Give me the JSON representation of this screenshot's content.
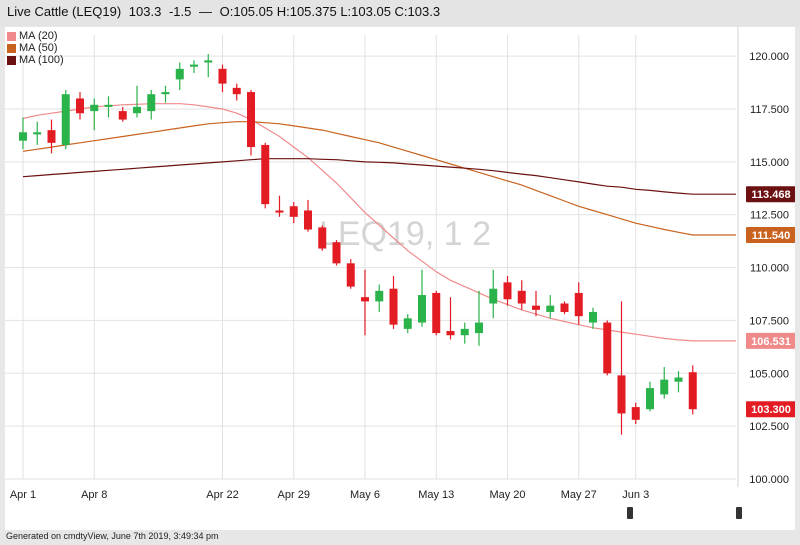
{
  "header": {
    "symbol": "Live Cattle (LEQ19)",
    "last": "103.3",
    "change": "-1.5",
    "separator": "—",
    "ohlc": "O:105.05 H:105.375 L:103.05 C:103.3"
  },
  "footer": {
    "text": "Generated on cmdtyView, June 7th 2019, 3:49:34 pm"
  },
  "colors": {
    "up": "#2bb34b",
    "down": "#e31b23",
    "ma20": "#f08a8a",
    "ma50": "#c8621e",
    "ma100": "#6b1111",
    "grid": "#e2e2e2",
    "watermark": "#d4d4d4"
  },
  "chart_data": {
    "type": "candlestick",
    "title": "Live Cattle (LEQ19)",
    "watermark": "LEQ19, 1 2",
    "legend": [
      {
        "name": "MA (20)",
        "color": "#f08a8a"
      },
      {
        "name": "MA (50)",
        "color": "#c8621e"
      },
      {
        "name": "MA (100)",
        "color": "#6b1111"
      }
    ],
    "legend_position": "top-left",
    "ylim": [
      100,
      121
    ],
    "y_ticks": [
      "100.000",
      "102.500",
      "105.000",
      "107.500",
      "110.000",
      "112.500",
      "115.000",
      "117.500",
      "120.000"
    ],
    "y_tick_values": [
      100,
      102.5,
      105,
      107.5,
      110,
      112.5,
      115,
      117.5,
      120
    ],
    "x_ticks": [
      {
        "label": "Apr 1",
        "index": 0
      },
      {
        "label": "Apr 8",
        "index": 5
      },
      {
        "label": "Apr 22",
        "index": 14
      },
      {
        "label": "Apr 29",
        "index": 19
      },
      {
        "label": "May 6",
        "index": 24
      },
      {
        "label": "May 13",
        "index": 29
      },
      {
        "label": "May 20",
        "index": 34
      },
      {
        "label": "May 27",
        "index": 39
      },
      {
        "label": "Jun 3",
        "index": 43
      }
    ],
    "x_count": 48,
    "candles": [
      {
        "o": 116.0,
        "h": 117.1,
        "l": 115.6,
        "c": 116.4
      },
      {
        "o": 116.3,
        "h": 116.9,
        "l": 115.8,
        "c": 116.4
      },
      {
        "o": 116.5,
        "h": 117.0,
        "l": 115.4,
        "c": 115.9
      },
      {
        "o": 115.8,
        "h": 118.4,
        "l": 115.6,
        "c": 118.2
      },
      {
        "o": 118.0,
        "h": 118.3,
        "l": 117.0,
        "c": 117.3
      },
      {
        "o": 117.4,
        "h": 118.0,
        "l": 116.5,
        "c": 117.7
      },
      {
        "o": 117.6,
        "h": 118.1,
        "l": 117.1,
        "c": 117.7
      },
      {
        "o": 117.4,
        "h": 117.6,
        "l": 116.9,
        "c": 117.0
      },
      {
        "o": 117.3,
        "h": 118.6,
        "l": 117.1,
        "c": 117.6
      },
      {
        "o": 117.4,
        "h": 118.4,
        "l": 117.0,
        "c": 118.2
      },
      {
        "o": 118.2,
        "h": 118.6,
        "l": 117.8,
        "c": 118.3
      },
      {
        "o": 118.9,
        "h": 119.7,
        "l": 118.4,
        "c": 119.4
      },
      {
        "o": 119.5,
        "h": 119.8,
        "l": 119.2,
        "c": 119.6
      },
      {
        "o": 119.7,
        "h": 120.1,
        "l": 119.0,
        "c": 119.8
      },
      {
        "o": 119.4,
        "h": 119.6,
        "l": 118.3,
        "c": 118.7
      },
      {
        "o": 118.5,
        "h": 118.7,
        "l": 117.9,
        "c": 118.2
      },
      {
        "o": 118.3,
        "h": 118.4,
        "l": 115.3,
        "c": 115.7
      },
      {
        "o": 115.8,
        "h": 115.9,
        "l": 112.8,
        "c": 113.0
      },
      {
        "o": 112.7,
        "h": 113.4,
        "l": 112.4,
        "c": 112.6
      },
      {
        "o": 112.9,
        "h": 113.1,
        "l": 112.1,
        "c": 112.4
      },
      {
        "o": 112.7,
        "h": 113.2,
        "l": 111.7,
        "c": 111.8
      },
      {
        "o": 111.9,
        "h": 112.0,
        "l": 110.8,
        "c": 110.9
      },
      {
        "o": 111.2,
        "h": 111.3,
        "l": 110.1,
        "c": 110.2
      },
      {
        "o": 110.2,
        "h": 110.4,
        "l": 109.0,
        "c": 109.1
      },
      {
        "o": 108.6,
        "h": 109.9,
        "l": 106.8,
        "c": 108.4
      },
      {
        "o": 108.4,
        "h": 109.2,
        "l": 107.9,
        "c": 108.9
      },
      {
        "o": 109.0,
        "h": 109.6,
        "l": 107.1,
        "c": 107.3
      },
      {
        "o": 107.1,
        "h": 107.8,
        "l": 106.9,
        "c": 107.6
      },
      {
        "o": 107.4,
        "h": 109.9,
        "l": 107.2,
        "c": 108.7
      },
      {
        "o": 108.8,
        "h": 108.9,
        "l": 106.8,
        "c": 106.9
      },
      {
        "o": 107.0,
        "h": 108.6,
        "l": 106.6,
        "c": 106.8
      },
      {
        "o": 106.8,
        "h": 107.4,
        "l": 106.4,
        "c": 107.1
      },
      {
        "o": 106.9,
        "h": 108.9,
        "l": 106.3,
        "c": 107.4
      },
      {
        "o": 108.3,
        "h": 109.9,
        "l": 107.6,
        "c": 109.0
      },
      {
        "o": 109.3,
        "h": 109.6,
        "l": 108.2,
        "c": 108.5
      },
      {
        "o": 108.9,
        "h": 109.4,
        "l": 108.0,
        "c": 108.3
      },
      {
        "o": 108.2,
        "h": 108.9,
        "l": 107.7,
        "c": 108.0
      },
      {
        "o": 107.9,
        "h": 108.7,
        "l": 107.6,
        "c": 108.2
      },
      {
        "o": 108.3,
        "h": 108.4,
        "l": 107.8,
        "c": 107.9
      },
      {
        "o": 108.8,
        "h": 109.3,
        "l": 107.3,
        "c": 107.7
      },
      {
        "o": 107.4,
        "h": 108.1,
        "l": 107.1,
        "c": 107.9
      },
      {
        "o": 107.4,
        "h": 107.5,
        "l": 104.9,
        "c": 105.0
      },
      {
        "o": 104.9,
        "h": 108.4,
        "l": 102.1,
        "c": 103.1
      },
      {
        "o": 103.4,
        "h": 103.6,
        "l": 102.6,
        "c": 102.8
      },
      {
        "o": 103.3,
        "h": 104.6,
        "l": 103.2,
        "c": 104.3
      },
      {
        "o": 104.0,
        "h": 105.3,
        "l": 103.8,
        "c": 104.7
      },
      {
        "o": 104.6,
        "h": 105.1,
        "l": 104.1,
        "c": 104.8
      },
      {
        "o": 105.05,
        "h": 105.375,
        "l": 103.05,
        "c": 103.3
      }
    ],
    "series": [
      {
        "name": "MA (20)",
        "values": [
          117.05,
          117.2,
          117.3,
          117.4,
          117.5,
          117.6,
          117.65,
          117.7,
          117.72,
          117.75,
          117.75,
          117.75,
          117.7,
          117.6,
          117.5,
          117.3,
          117.0,
          116.6,
          116.2,
          115.7,
          115.2,
          114.6,
          114.0,
          113.3,
          112.6,
          112.0,
          111.4,
          110.8,
          110.3,
          109.8,
          109.4,
          109.1,
          108.8,
          108.5,
          108.25,
          108.0,
          107.8,
          107.6,
          107.45,
          107.3,
          107.15,
          107.05,
          106.95,
          106.85,
          106.75,
          106.65,
          106.58,
          106.53
        ]
      },
      {
        "name": "MA (50)",
        "values": [
          115.5,
          115.6,
          115.7,
          115.8,
          115.9,
          116.0,
          116.1,
          116.2,
          116.3,
          116.4,
          116.5,
          116.6,
          116.7,
          116.8,
          116.85,
          116.9,
          116.9,
          116.85,
          116.8,
          116.7,
          116.6,
          116.5,
          116.35,
          116.2,
          116.05,
          115.9,
          115.7,
          115.5,
          115.3,
          115.1,
          114.9,
          114.7,
          114.5,
          114.3,
          114.1,
          113.9,
          113.65,
          113.4,
          113.15,
          112.9,
          112.7,
          112.5,
          112.3,
          112.1,
          111.95,
          111.8,
          111.67,
          111.54
        ]
      },
      {
        "name": "MA (100)",
        "values": [
          114.3,
          114.35,
          114.4,
          114.45,
          114.5,
          114.55,
          114.6,
          114.65,
          114.7,
          114.75,
          114.8,
          114.85,
          114.9,
          114.95,
          115.0,
          115.05,
          115.1,
          115.15,
          115.15,
          115.15,
          115.15,
          115.12,
          115.1,
          115.05,
          115.0,
          114.98,
          114.95,
          114.9,
          114.85,
          114.8,
          114.75,
          114.7,
          114.65,
          114.58,
          114.5,
          114.42,
          114.35,
          114.25,
          114.15,
          114.05,
          113.95,
          113.85,
          113.8,
          113.7,
          113.65,
          113.58,
          113.52,
          113.468
        ]
      }
    ],
    "last_value_labels": [
      {
        "text": "113.468",
        "value": 113.468,
        "color": "#6b1111"
      },
      {
        "text": "111.540",
        "value": 111.54,
        "color": "#c8621e"
      },
      {
        "text": "106.531",
        "value": 106.531,
        "color": "#f08a8a"
      },
      {
        "text": "103.300",
        "value": 103.3,
        "color": "#e31b23"
      }
    ],
    "grid": true
  }
}
